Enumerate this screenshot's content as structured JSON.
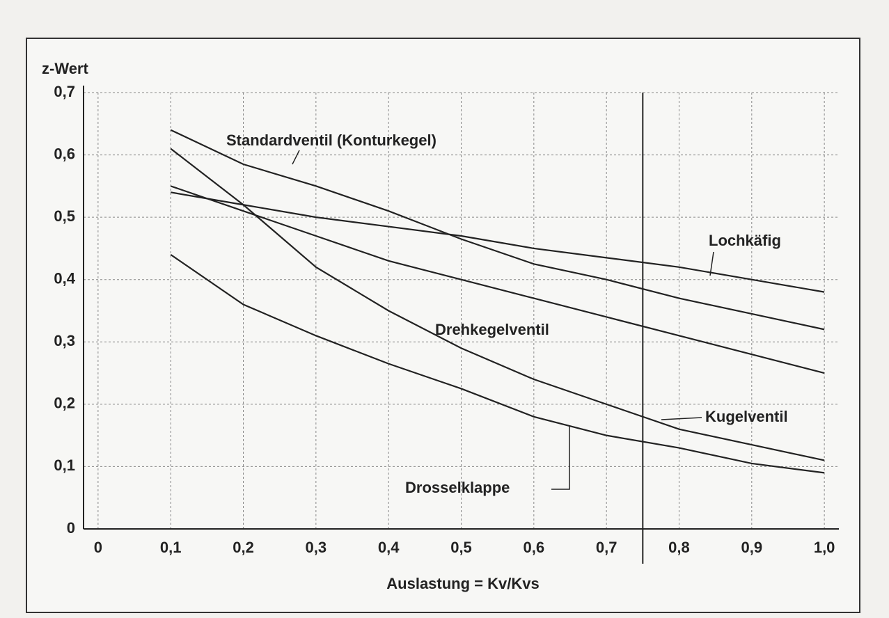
{
  "chart_data": {
    "type": "line",
    "xlabel": "Auslastung = Kv/Kvs",
    "ylabel": "z-Wert",
    "x": [
      0.1,
      0.2,
      0.3,
      0.4,
      0.5,
      0.6,
      0.7,
      0.8,
      0.9,
      1.0
    ],
    "series": [
      {
        "name": "Standardventil (Konturkegel)",
        "color": "#222222",
        "values": [
          0.64,
          0.585,
          0.55,
          0.51,
          0.465,
          0.425,
          0.4,
          0.37,
          0.345,
          0.32
        ]
      },
      {
        "name": "Lochkäfig",
        "color": "#222222",
        "values": [
          0.54,
          0.52,
          0.5,
          0.485,
          0.47,
          0.45,
          0.435,
          0.42,
          0.4,
          0.38
        ]
      },
      {
        "name": "Drehkegelventil",
        "color": "#222222",
        "values": [
          0.55,
          0.51,
          0.47,
          0.43,
          0.4,
          0.37,
          0.34,
          0.31,
          0.28,
          0.25
        ]
      },
      {
        "name": "Kugelventil",
        "color": "#222222",
        "values": [
          0.61,
          0.52,
          0.42,
          0.35,
          0.29,
          0.24,
          0.2,
          0.16,
          0.135,
          0.11
        ]
      },
      {
        "name": "Drosselklappe",
        "color": "#222222",
        "values": [
          0.44,
          0.36,
          0.31,
          0.265,
          0.225,
          0.18,
          0.15,
          0.13,
          0.105,
          0.09
        ]
      }
    ],
    "vline": 0.75,
    "xlim": [
      -0.02,
      1.02
    ],
    "ylim": [
      0,
      0.7
    ],
    "xticks": [
      0,
      {
        "value": 0.1,
        "label": "0,1"
      },
      {
        "value": 0.2,
        "label": "0,2"
      },
      {
        "value": 0.3,
        "label": "0,3"
      },
      {
        "value": 0.4,
        "label": "0,4"
      },
      {
        "value": 0.5,
        "label": "0,5"
      },
      {
        "value": 0.6,
        "label": "0,6"
      },
      {
        "value": 0.7,
        "label": "0,7"
      },
      {
        "value": 0.8,
        "label": "0,8"
      },
      {
        "value": 0.9,
        "label": "0,9"
      },
      {
        "value": 1.0,
        "label": "1,0"
      }
    ],
    "yticks": [
      0,
      {
        "value": 0.1,
        "label": "0,1"
      },
      {
        "value": 0.2,
        "label": "0,2"
      },
      {
        "value": 0.3,
        "label": "0,3"
      },
      {
        "value": 0.4,
        "label": "0,4"
      },
      {
        "value": 0.5,
        "label": "0,5"
      },
      {
        "value": 0.6,
        "label": "0,6"
      },
      {
        "value": 0.7,
        "label": "0,7"
      }
    ],
    "grid": true
  }
}
